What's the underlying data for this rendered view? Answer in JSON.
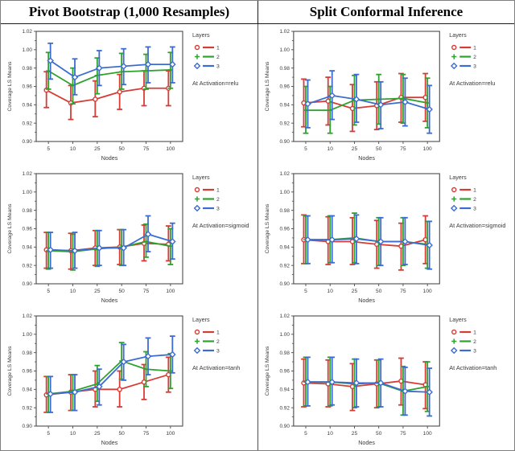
{
  "header": {
    "left_title": "Pivot Bootstrap (1,000 Resamples)",
    "right_title": "Split Conformal Inference"
  },
  "palette": {
    "layer1_red": "#d63c36",
    "layer2_green": "#2fa12e",
    "layer3_blue": "#3c6cd1",
    "axis": "#4a4a4a",
    "text": "#3a3a3a"
  },
  "legend": {
    "title": "Layers",
    "entries": [
      {
        "label": "1",
        "marker": "circle-icon",
        "color": "#d63c36"
      },
      {
        "label": "2",
        "marker": "plus-icon",
        "color": "#2fa12e"
      },
      {
        "label": "3",
        "marker": "diamond-icon",
        "color": "#3c6cd1"
      }
    ]
  },
  "chart_data": [
    {
      "type": "line",
      "panel_title": "Pivot Bootstrap (1,000 Resamples)",
      "annotation": "At Activation=relu",
      "xlabel": "Nodes",
      "ylabel": "Coverage LS Means",
      "ylim": [
        0.9,
        1.02
      ],
      "ytick_step": 0.02,
      "categories": [
        "5",
        "10",
        "25",
        "50",
        "75",
        "100"
      ],
      "series": [
        {
          "name": "1",
          "marker": "circle",
          "color": "#d63c36",
          "values": [
            0.956,
            0.942,
            0.946,
            0.954,
            0.958,
            0.958
          ],
          "lower": [
            0.937,
            0.924,
            0.927,
            0.935,
            0.939,
            0.939
          ],
          "upper": [
            0.976,
            0.961,
            0.966,
            0.973,
            0.977,
            0.977
          ]
        },
        {
          "name": "2",
          "marker": "plus",
          "color": "#2fa12e",
          "values": [
            0.977,
            0.961,
            0.972,
            0.976,
            0.977,
            0.978
          ],
          "lower": [
            0.957,
            0.941,
            0.952,
            0.957,
            0.957,
            0.958
          ],
          "upper": [
            0.997,
            0.98,
            0.991,
            0.996,
            0.995,
            0.997
          ]
        },
        {
          "name": "3",
          "marker": "diamond",
          "color": "#3c6cd1",
          "values": [
            0.988,
            0.97,
            0.98,
            0.982,
            0.984,
            0.984
          ],
          "lower": [
            0.968,
            0.951,
            0.961,
            0.962,
            0.964,
            0.964
          ],
          "upper": [
            1.007,
            0.99,
            0.999,
            1.001,
            1.003,
            1.003
          ]
        }
      ]
    },
    {
      "type": "line",
      "panel_title": "Split Conformal Inference",
      "annotation": "At Activation=relu",
      "xlabel": "Nodes",
      "ylabel": "Coverage LS Means",
      "ylim": [
        0.9,
        1.02
      ],
      "ytick_step": 0.02,
      "categories": [
        "5",
        "10",
        "25",
        "50",
        "75",
        "100"
      ],
      "series": [
        {
          "name": "1",
          "marker": "circle",
          "color": "#d63c36",
          "values": [
            0.942,
            0.944,
            0.936,
            0.939,
            0.948,
            0.948
          ],
          "lower": [
            0.916,
            0.918,
            0.911,
            0.913,
            0.921,
            0.922
          ],
          "upper": [
            0.968,
            0.97,
            0.962,
            0.965,
            0.974,
            0.974
          ]
        },
        {
          "name": "2",
          "marker": "plus",
          "color": "#2fa12e",
          "values": [
            0.934,
            0.934,
            0.945,
            0.946,
            0.947,
            0.942
          ],
          "lower": [
            0.909,
            0.909,
            0.918,
            0.919,
            0.92,
            0.915
          ],
          "upper": [
            0.96,
            0.96,
            0.972,
            0.973,
            0.973,
            0.969
          ]
        },
        {
          "name": "3",
          "marker": "diamond",
          "color": "#3c6cd1",
          "values": [
            0.941,
            0.95,
            0.946,
            0.94,
            0.943,
            0.935
          ],
          "lower": [
            0.915,
            0.924,
            0.921,
            0.914,
            0.917,
            0.909
          ],
          "upper": [
            0.967,
            0.977,
            0.973,
            0.965,
            0.969,
            0.961
          ]
        }
      ]
    },
    {
      "type": "line",
      "panel_title": "Pivot Bootstrap (1,000 Resamples)",
      "annotation": "At Activation=sigmoid",
      "xlabel": "Nodes",
      "ylabel": "Coverage LS Means",
      "ylim": [
        0.9,
        1.02
      ],
      "ytick_step": 0.02,
      "categories": [
        "5",
        "10",
        "25",
        "50",
        "75",
        "100"
      ],
      "series": [
        {
          "name": "1",
          "marker": "circle",
          "color": "#d63c36",
          "values": [
            0.937,
            0.936,
            0.939,
            0.94,
            0.944,
            0.943
          ],
          "lower": [
            0.917,
            0.916,
            0.92,
            0.921,
            0.925,
            0.925
          ],
          "upper": [
            0.956,
            0.955,
            0.958,
            0.959,
            0.964,
            0.963
          ]
        },
        {
          "name": "2",
          "marker": "plus",
          "color": "#2fa12e",
          "values": [
            0.936,
            0.935,
            0.938,
            0.94,
            0.946,
            0.941
          ],
          "lower": [
            0.916,
            0.915,
            0.919,
            0.92,
            0.929,
            0.921
          ],
          "upper": [
            0.956,
            0.954,
            0.958,
            0.959,
            0.965,
            0.96
          ]
        },
        {
          "name": "3",
          "marker": "diamond",
          "color": "#3c6cd1",
          "values": [
            0.937,
            0.936,
            0.939,
            0.939,
            0.954,
            0.946
          ],
          "lower": [
            0.917,
            0.917,
            0.92,
            0.92,
            0.935,
            0.927
          ],
          "upper": [
            0.956,
            0.956,
            0.958,
            0.959,
            0.974,
            0.966
          ]
        }
      ]
    },
    {
      "type": "line",
      "panel_title": "Split Conformal Inference",
      "annotation": "At Activation=sigmoid",
      "xlabel": "Nodes",
      "ylabel": "Coverage LS Means",
      "ylim": [
        0.9,
        1.02
      ],
      "ytick_step": 0.02,
      "categories": [
        "5",
        "10",
        "25",
        "50",
        "75",
        "100"
      ],
      "series": [
        {
          "name": "1",
          "marker": "circle",
          "color": "#d63c36",
          "values": [
            0.948,
            0.946,
            0.946,
            0.943,
            0.941,
            0.948
          ],
          "lower": [
            0.922,
            0.921,
            0.921,
            0.917,
            0.915,
            0.922
          ],
          "upper": [
            0.975,
            0.973,
            0.972,
            0.969,
            0.966,
            0.974
          ]
        },
        {
          "name": "2",
          "marker": "plus",
          "color": "#2fa12e",
          "values": [
            0.948,
            0.948,
            0.95,
            0.946,
            0.946,
            0.943
          ],
          "lower": [
            0.922,
            0.923,
            0.923,
            0.92,
            0.92,
            0.917
          ],
          "upper": [
            0.974,
            0.974,
            0.977,
            0.972,
            0.972,
            0.968
          ]
        },
        {
          "name": "3",
          "marker": "diamond",
          "color": "#3c6cd1",
          "values": [
            0.948,
            0.948,
            0.949,
            0.946,
            0.946,
            0.942
          ],
          "lower": [
            0.922,
            0.923,
            0.922,
            0.92,
            0.921,
            0.916
          ],
          "upper": [
            0.974,
            0.974,
            0.975,
            0.972,
            0.972,
            0.968
          ]
        }
      ]
    },
    {
      "type": "line",
      "panel_title": "Pivot Bootstrap (1,000 Resamples)",
      "annotation": "At Activation=tanh",
      "xlabel": "Nodes",
      "ylabel": "Coverage LS Means",
      "ylim": [
        0.9,
        1.02
      ],
      "ytick_step": 0.02,
      "categories": [
        "5",
        "10",
        "25",
        "50",
        "75",
        "100"
      ],
      "series": [
        {
          "name": "1",
          "marker": "circle",
          "color": "#d63c36",
          "values": [
            0.934,
            0.937,
            0.94,
            0.94,
            0.948,
            0.956
          ],
          "lower": [
            0.915,
            0.917,
            0.921,
            0.921,
            0.929,
            0.937
          ],
          "upper": [
            0.954,
            0.956,
            0.96,
            0.96,
            0.967,
            0.975
          ]
        },
        {
          "name": "2",
          "marker": "plus",
          "color": "#2fa12e",
          "values": [
            0.935,
            0.938,
            0.946,
            0.971,
            0.962,
            0.96
          ],
          "lower": [
            0.915,
            0.917,
            0.927,
            0.951,
            0.943,
            0.941
          ],
          "upper": [
            0.954,
            0.956,
            0.966,
            0.991,
            0.981,
            0.979
          ]
        },
        {
          "name": "3",
          "marker": "diamond",
          "color": "#3c6cd1",
          "values": [
            0.935,
            0.937,
            0.943,
            0.97,
            0.976,
            0.978
          ],
          "lower": [
            0.915,
            0.917,
            0.923,
            0.95,
            0.956,
            0.958
          ],
          "upper": [
            0.954,
            0.956,
            0.962,
            0.989,
            0.996,
            0.998
          ]
        }
      ]
    },
    {
      "type": "line",
      "panel_title": "Split Conformal Inference",
      "annotation": "At Activation=tanh",
      "xlabel": "Nodes",
      "ylabel": "Coverage LS Means",
      "ylim": [
        0.9,
        1.02
      ],
      "ytick_step": 0.02,
      "categories": [
        "5",
        "10",
        "25",
        "50",
        "75",
        "100"
      ],
      "series": [
        {
          "name": "1",
          "marker": "circle",
          "color": "#d63c36",
          "values": [
            0.947,
            0.946,
            0.943,
            0.946,
            0.949,
            0.945
          ],
          "lower": [
            0.921,
            0.921,
            0.917,
            0.92,
            0.923,
            0.919
          ],
          "upper": [
            0.973,
            0.972,
            0.968,
            0.972,
            0.974,
            0.97
          ]
        },
        {
          "name": "2",
          "marker": "plus",
          "color": "#2fa12e",
          "values": [
            0.948,
            0.948,
            0.946,
            0.947,
            0.938,
            0.943
          ],
          "lower": [
            0.922,
            0.922,
            0.92,
            0.921,
            0.912,
            0.916
          ],
          "upper": [
            0.975,
            0.975,
            0.973,
            0.972,
            0.965,
            0.97
          ]
        },
        {
          "name": "3",
          "marker": "diamond",
          "color": "#3c6cd1",
          "values": [
            0.948,
            0.948,
            0.947,
            0.947,
            0.938,
            0.937
          ],
          "lower": [
            0.922,
            0.923,
            0.921,
            0.921,
            0.912,
            0.911
          ],
          "upper": [
            0.975,
            0.975,
            0.973,
            0.973,
            0.964,
            0.963
          ]
        }
      ]
    }
  ]
}
